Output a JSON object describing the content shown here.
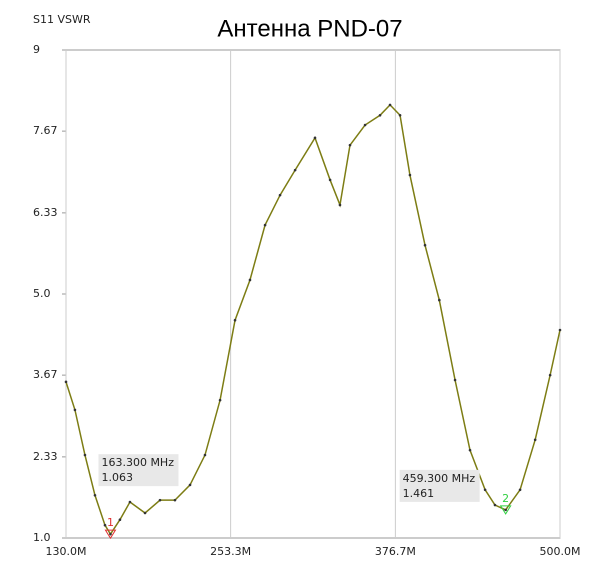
{
  "chart_data": {
    "type": "line",
    "title": "Антенна PND-07",
    "y_label": "S11 VSWR",
    "x": [
      130,
      136.7,
      144.2,
      151.7,
      159.2,
      163.3,
      170.4,
      177.9,
      189.2,
      200.4,
      211.6,
      222.9,
      234.1,
      245.4,
      256.6,
      267.8,
      279.1,
      290.3,
      301.6,
      316.5,
      327.8,
      335.2,
      342.7,
      354.0,
      365.2,
      372.7,
      380.2,
      387.6,
      398.9,
      409.6,
      421.4,
      432.6,
      443.9,
      451.3,
      459.3,
      470.1,
      481.4,
      492.6,
      500
    ],
    "series": [
      {
        "color": "#7d7d14",
        "values": [
          3.56,
          3.1,
          2.36,
          1.7,
          1.21,
          1.063,
          1.3,
          1.59,
          1.41,
          1.62,
          1.62,
          1.87,
          2.36,
          3.26,
          4.57,
          5.23,
          6.13,
          6.62,
          7.03,
          7.56,
          6.87,
          6.46,
          7.44,
          7.77,
          7.93,
          8.1,
          7.93,
          6.95,
          5.8,
          4.9,
          3.59,
          2.44,
          1.79,
          1.54,
          1.461,
          1.79,
          2.61,
          3.67,
          4.41
        ]
      }
    ],
    "xlim": [
      130,
      500
    ],
    "ylim": [
      1,
      9
    ],
    "xticks": [
      {
        "value": 130,
        "label": "130.0M"
      },
      {
        "value": 253.3,
        "label": "253.3M"
      },
      {
        "value": 376.7,
        "label": "376.7M"
      },
      {
        "value": 500,
        "label": "500.0M"
      }
    ],
    "yticks": [
      {
        "value": 1,
        "label": "1.0"
      },
      2.33,
      3.67,
      {
        "value": 5,
        "label": "5.0"
      },
      6.33,
      7.67,
      9
    ],
    "grid": "x",
    "markers": [
      {
        "label": "1",
        "x": 163.3,
        "y": 1.063,
        "x_label": "163.300 MHz",
        "color": "#e03030"
      },
      {
        "label": "2",
        "x": 459.3,
        "y": 1.461,
        "x_label": "459.300 MHz",
        "color": "#30d040"
      }
    ]
  }
}
